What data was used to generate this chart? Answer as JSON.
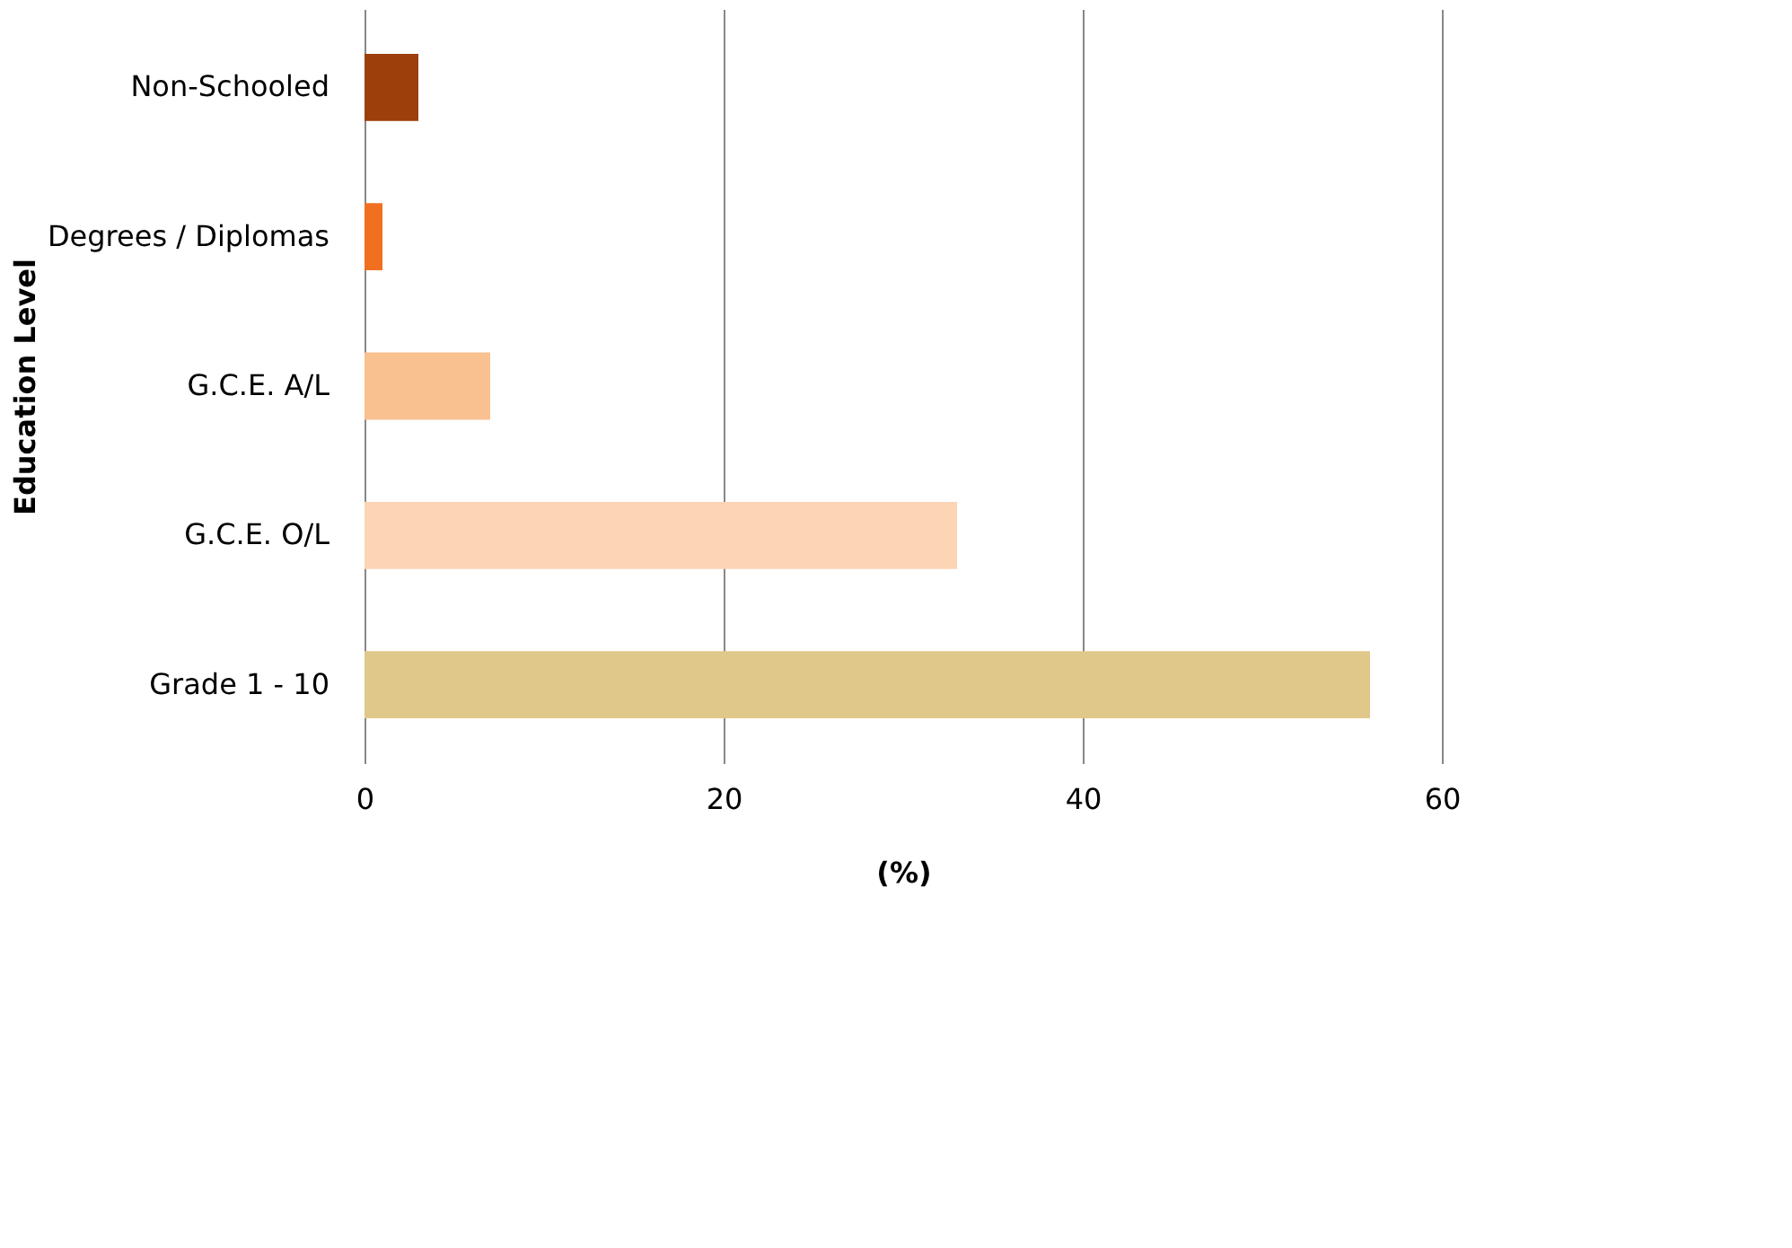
{
  "chart_data": {
    "type": "bar",
    "orientation": "horizontal",
    "categories": [
      "Non-Schooled",
      "Degrees / Diplomas",
      "G.C.E. A/L",
      "G.C.E. O/L",
      "Grade 1 - 10"
    ],
    "values": [
      3,
      1,
      7,
      33,
      56
    ],
    "colors": [
      "#9c3f0a",
      "#f07020",
      "#f9c090",
      "#fcd5b5",
      "#e0c88a"
    ],
    "xlabel": "(%)",
    "ylabel": "Education Level",
    "xlim": [
      0,
      60
    ],
    "xticks": [
      0,
      20,
      40,
      60
    ],
    "grid": "x"
  }
}
